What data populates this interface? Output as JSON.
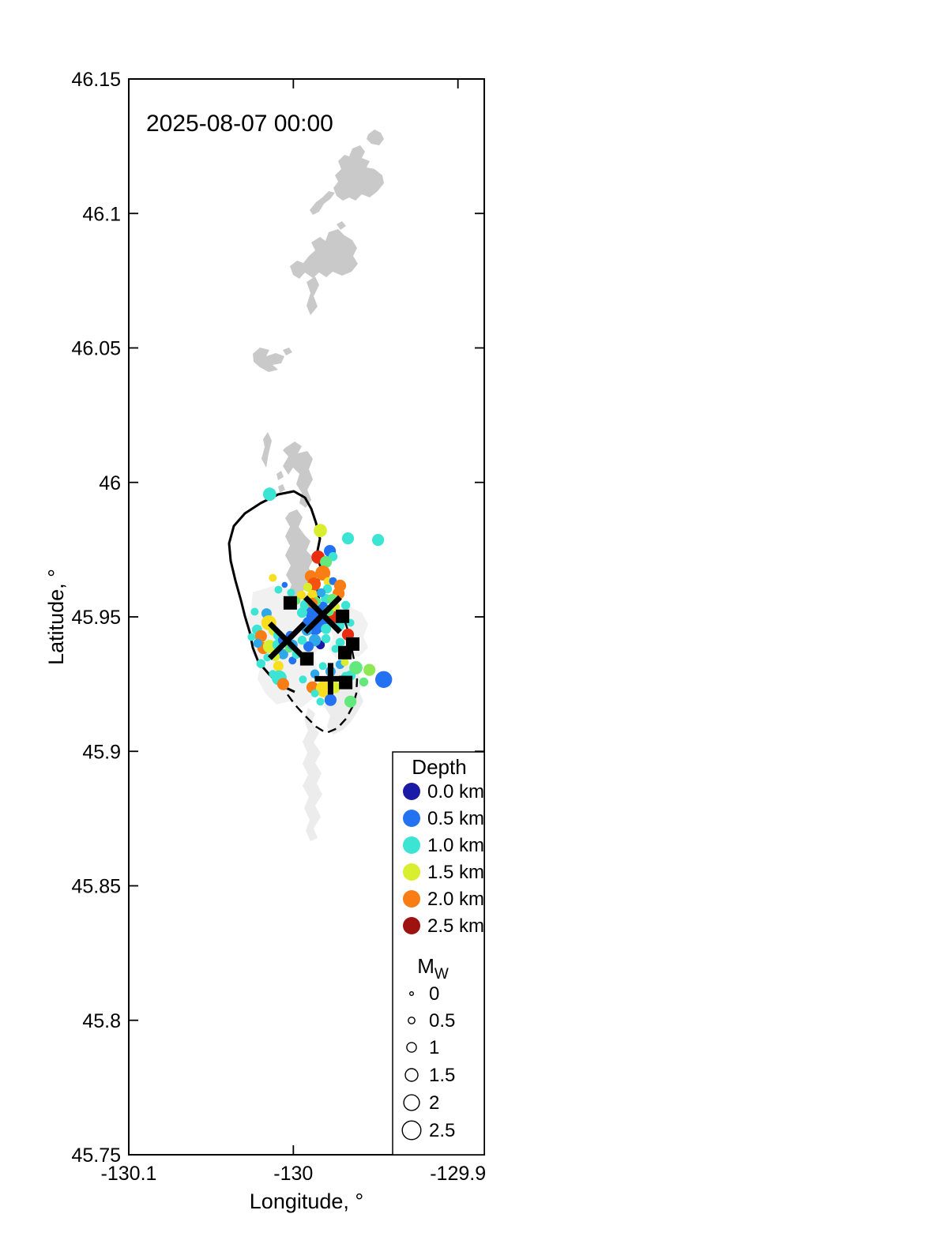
{
  "chart_data": {
    "type": "scatter",
    "title": "2025-08-07 00:00",
    "xlabel": "Longitude, °",
    "ylabel": "Latitude, °",
    "xlim": [
      -130.1,
      -129.884
    ],
    "ylim": [
      45.75,
      46.15
    ],
    "grid": false,
    "legend_position": "lower right",
    "xticks": [
      {
        "v": -130.1,
        "label": "-130.1"
      },
      {
        "v": -130.0,
        "label": "-130"
      },
      {
        "v": -129.9,
        "label": "-129.9"
      }
    ],
    "yticks": [
      {
        "v": 46.15,
        "label": "46.15"
      },
      {
        "v": 46.1,
        "label": "46.1"
      },
      {
        "v": 46.05,
        "label": "46.05"
      },
      {
        "v": 46.0,
        "label": "46"
      },
      {
        "v": 45.95,
        "label": "45.95"
      },
      {
        "v": 45.9,
        "label": "45.9"
      },
      {
        "v": 45.85,
        "label": "45.85"
      },
      {
        "v": 45.8,
        "label": "45.8"
      },
      {
        "v": 45.75,
        "label": "45.75"
      }
    ],
    "depth_colors": {
      "0": "#1a1aa6",
      "0.5": "#2372f2",
      "0.75": "#2fa8e9",
      "1": "#3ce4d4",
      "1.25": "#62e87d",
      "1.4": "#8fe853",
      "1.5": "#d9ee2f",
      "1.75": "#f8de1c",
      "2": "#f97d15",
      "2.2": "#f55210",
      "2.25": "#e92c0e",
      "2.5": "#9e1210"
    },
    "points_format": [
      "lon",
      "lat",
      "depth_km",
      "mw"
    ],
    "points": [
      [
        -130.0144,
        45.9956,
        1,
        1.6
      ],
      [
        -129.9836,
        45.9821,
        1.5,
        1.6
      ],
      [
        -129.9668,
        45.9792,
        1,
        1.4
      ],
      [
        -129.9485,
        45.9786,
        1,
        1.4
      ],
      [
        -129.985,
        45.9722,
        2.25,
        1.6
      ],
      [
        -129.9778,
        45.9745,
        0.5,
        1.4
      ],
      [
        -129.9759,
        45.9724,
        1,
        0.9
      ],
      [
        -129.9802,
        45.9704,
        1.25,
        1.4
      ],
      [
        -129.9821,
        45.9663,
        2,
        1.9
      ],
      [
        -129.9894,
        45.9651,
        2,
        1.4
      ],
      [
        -129.9874,
        45.9622,
        2.2,
        1.6
      ],
      [
        -129.9788,
        45.9631,
        1.75,
        0.9
      ],
      [
        -129.9759,
        45.9633,
        0.5,
        0.7
      ],
      [
        -129.9716,
        45.9616,
        2,
        1.4
      ],
      [
        -129.9725,
        45.9587,
        2,
        1.4
      ],
      [
        -129.9884,
        45.9581,
        1.75,
        1.1
      ],
      [
        -129.9802,
        45.9566,
        1,
        1.1
      ],
      [
        -129.9759,
        45.9566,
        1.5,
        1.1
      ],
      [
        -129.9923,
        45.9543,
        1,
        1.4
      ],
      [
        -129.9821,
        45.9537,
        0.5,
        1.1
      ],
      [
        -129.986,
        45.9557,
        1.25,
        0.9
      ],
      [
        -129.9869,
        45.9519,
        1,
        0.9
      ],
      [
        -129.9879,
        45.9513,
        0.5,
        1.9
      ],
      [
        -129.9841,
        45.9493,
        0.5,
        1.6
      ],
      [
        -129.9908,
        45.9478,
        0.5,
        1.4
      ],
      [
        -129.9869,
        45.946,
        0.5,
        1.9
      ],
      [
        -129.9821,
        45.9466,
        0.5,
        1.4
      ],
      [
        -129.9918,
        45.9449,
        0.75,
        1.1
      ],
      [
        -129.9947,
        45.9516,
        1,
        1.1
      ],
      [
        -129.9802,
        45.9455,
        1,
        1.1
      ],
      [
        -129.9725,
        45.9469,
        1,
        1.4
      ],
      [
        -129.9754,
        45.9499,
        2.25,
        1.4
      ],
      [
        -129.9783,
        45.9522,
        1.25,
        1.1
      ],
      [
        -129.9745,
        45.9537,
        1.5,
        0.9
      ],
      [
        -129.9668,
        45.9434,
        2.25,
        1.4
      ],
      [
        -129.9836,
        45.9396,
        0,
        0.9
      ],
      [
        -129.9869,
        45.9413,
        0.75,
        1.4
      ],
      [
        -129.9908,
        45.939,
        0.5,
        1.1
      ],
      [
        -129.9947,
        45.9413,
        1,
        0.9
      ],
      [
        -129.9802,
        45.9419,
        1,
        0.9
      ],
      [
        -130.0235,
        45.9519,
        1,
        0.7
      ],
      [
        -130.0163,
        45.9513,
        0.75,
        1.1
      ],
      [
        -130.0149,
        45.9478,
        1.75,
        1.9
      ],
      [
        -130.0221,
        45.9452,
        1,
        1.1
      ],
      [
        -130.0197,
        45.9428,
        2,
        1.4
      ],
      [
        -130.012,
        45.9449,
        1.5,
        1.1
      ],
      [
        -130.0091,
        45.9431,
        1,
        1.1
      ],
      [
        -130.0182,
        45.9384,
        2,
        1.4
      ],
      [
        -130.0144,
        45.939,
        1.5,
        1.6
      ],
      [
        -130.0096,
        45.9396,
        1,
        1.1
      ],
      [
        -130.0062,
        45.9361,
        0.75,
        1.1
      ],
      [
        -130.0158,
        45.9349,
        1,
        0.7
      ],
      [
        -130.0197,
        45.9326,
        1,
        0.9
      ],
      [
        -130.0091,
        45.9317,
        1.75,
        1.1
      ],
      [
        -130.0125,
        45.9288,
        1,
        0.7
      ],
      [
        -130.0086,
        45.9273,
        1,
        1.9
      ],
      [
        -130.0062,
        45.925,
        2,
        1.4
      ],
      [
        -130.0005,
        45.9338,
        0.5,
        0.7
      ],
      [
        -129.9981,
        45.9361,
        1,
        0.9
      ],
      [
        -130.0024,
        45.9384,
        1.25,
        0.9
      ],
      [
        -130.011,
        45.9352,
        1.5,
        0.9
      ],
      [
        -130.0216,
        45.9402,
        0.75,
        0.9
      ],
      [
        -130.0254,
        45.9425,
        1,
        0.7
      ],
      [
        -129.9942,
        45.9267,
        1,
        0.7
      ],
      [
        -129.9884,
        45.9238,
        2,
        1.4
      ],
      [
        -129.9812,
        45.9232,
        1.75,
        2.2
      ],
      [
        -129.975,
        45.9238,
        1.5,
        1.4
      ],
      [
        -129.9774,
        45.9297,
        0.75,
        1.1
      ],
      [
        -129.9774,
        45.9191,
        0.5,
        1.4
      ],
      [
        -129.9653,
        45.9185,
        1.25,
        1.4
      ],
      [
        -129.9653,
        45.9282,
        1,
        1.1
      ],
      [
        -129.962,
        45.9311,
        1.25,
        1.6
      ],
      [
        -129.9538,
        45.9303,
        1.4,
        1.4
      ],
      [
        -129.9572,
        45.9258,
        1.25,
        0.9
      ],
      [
        -129.9451,
        45.9267,
        0.5,
        2.2
      ],
      [
        -129.9682,
        45.9279,
        1,
        0.9
      ],
      [
        -129.9774,
        45.927,
        0,
        0.7
      ],
      [
        -129.9716,
        45.9323,
        0.75,
        0.9
      ],
      [
        -129.9821,
        45.9317,
        1,
        0.7
      ],
      [
        -129.9869,
        45.9288,
        0.75,
        0.9
      ],
      [
        -129.9764,
        45.9566,
        1.25,
        1.1
      ],
      [
        -129.9793,
        45.9604,
        1,
        0.9
      ],
      [
        -129.9831,
        45.959,
        0.75,
        0.9
      ],
      [
        -129.9913,
        45.961,
        1.5,
        0.9
      ],
      [
        -129.9951,
        45.9581,
        1.75,
        0.9
      ],
      [
        -129.9884,
        45.9552,
        2,
        1.1
      ],
      [
        -129.9716,
        45.9405,
        1,
        0.9
      ],
      [
        -129.9745,
        45.9381,
        1,
        0.7
      ],
      [
        -129.9687,
        45.9331,
        1.5,
        0.7
      ],
      [
        -129.9836,
        45.9185,
        1,
        0.7
      ],
      [
        -129.9869,
        45.9215,
        1,
        0.7
      ],
      [
        -130.0053,
        45.9619,
        0.5,
        0.4
      ],
      [
        -130.0125,
        45.9645,
        1.75,
        0.7
      ],
      [
        -130.0091,
        45.9601,
        1,
        0.7
      ],
      [
        -130.0014,
        45.959,
        1,
        0.7
      ],
      [
        -129.9981,
        45.956,
        1.25,
        0.7
      ],
      [
        -129.9682,
        45.9543,
        1,
        0.9
      ],
      [
        -129.9653,
        45.9478,
        1,
        0.7
      ],
      [
        -130.0019,
        45.9431,
        0.5,
        0.9
      ],
      [
        -130.0062,
        45.9413,
        0.5,
        1.1
      ],
      [
        -130.0005,
        45.9396,
        0.75,
        1.1
      ]
    ],
    "square_markers": [
      [
        -130.0019,
        45.9552
      ],
      [
        -129.9701,
        45.9502
      ],
      [
        -129.9639,
        45.9399
      ],
      [
        -129.9687,
        45.9367
      ],
      [
        -129.9918,
        45.9344
      ],
      [
        -129.9682,
        45.9256
      ]
    ],
    "x_markers": [
      [
        -129.9822,
        45.9508
      ],
      [
        -130.0038,
        45.9411
      ]
    ],
    "plus_markers": [
      [
        -129.9774,
        45.927
      ]
    ]
  },
  "legend": {
    "depth_title": "Depth",
    "depth_items": [
      {
        "label": "0.0 km",
        "color": "#1a1aa6"
      },
      {
        "label": "0.5 km",
        "color": "#2372f2"
      },
      {
        "label": "1.0 km",
        "color": "#3ce4d4"
      },
      {
        "label": "1.5 km",
        "color": "#d9ee2f"
      },
      {
        "label": "2.0 km",
        "color": "#f97d15"
      },
      {
        "label": "2.5 km",
        "color": "#9e1210"
      }
    ],
    "mw_title": "M",
    "mw_title_sub": "W",
    "mw_items": [
      {
        "label": "0",
        "mw": 0.0
      },
      {
        "label": "0.5",
        "mw": 0.5
      },
      {
        "label": "1",
        "mw": 1.0
      },
      {
        "label": "1.5",
        "mw": 1.5
      },
      {
        "label": "2",
        "mw": 2.0
      },
      {
        "label": "2.5",
        "mw": 2.5
      }
    ]
  }
}
